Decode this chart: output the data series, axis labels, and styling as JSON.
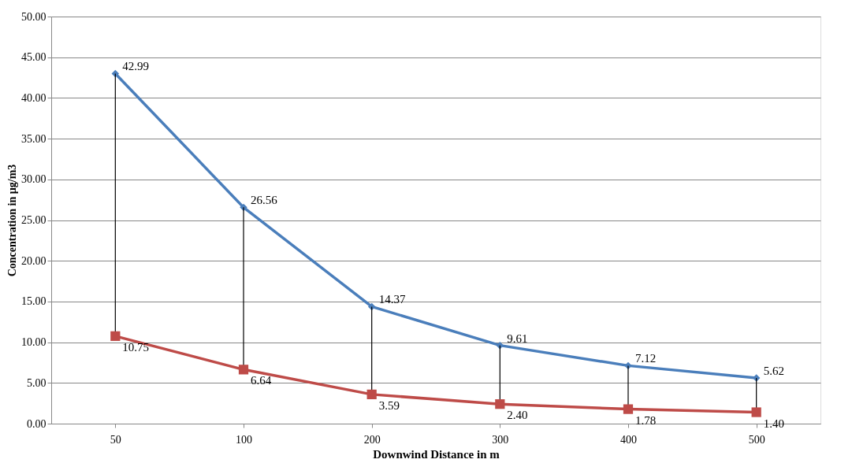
{
  "chart_data": {
    "type": "line",
    "xlabel": "Downwind Distance in m",
    "ylabel": "Concentration in µg/m3",
    "categories": [
      "50",
      "100",
      "200",
      "300",
      "400",
      "500"
    ],
    "series": [
      {
        "color": "#4a7ebb",
        "marker": "diamond",
        "values": [
          42.99,
          26.56,
          14.37,
          9.61,
          7.12,
          5.62
        ],
        "value_labels": [
          "42.99",
          "26.56",
          "14.37",
          "9.61",
          "7.12",
          "5.62"
        ]
      },
      {
        "color": "#be4b48",
        "marker": "square",
        "values": [
          10.75,
          6.64,
          3.59,
          2.4,
          1.78,
          1.4
        ],
        "value_labels": [
          "10.75",
          "6.64",
          "3.59",
          "2.40",
          "1.78",
          "1.40"
        ],
        "errors": [
          [
            10.75,
            42.99
          ],
          [
            6.64,
            26.56
          ],
          [
            3.59,
            14.37
          ],
          [
            2.4,
            9.61
          ],
          [
            1.78,
            7.12
          ],
          [
            1.4,
            5.62
          ]
        ]
      }
    ],
    "ylim": [
      0,
      50
    ],
    "yticks": [
      {
        "value": 0,
        "label": "0.00"
      },
      {
        "value": 5,
        "label": "5.00"
      },
      {
        "value": 10,
        "label": "10.00"
      },
      {
        "value": 15,
        "label": "15.00"
      },
      {
        "value": 20,
        "label": "20.00"
      },
      {
        "value": 25,
        "label": "25.00"
      },
      {
        "value": 30,
        "label": "30.00"
      },
      {
        "value": 35,
        "label": "35.00"
      },
      {
        "value": 40,
        "label": "40.00"
      },
      {
        "value": 45,
        "label": "45.00"
      },
      {
        "value": 50,
        "label": "50.00"
      }
    ],
    "grid": "y",
    "line_style": "solid"
  }
}
